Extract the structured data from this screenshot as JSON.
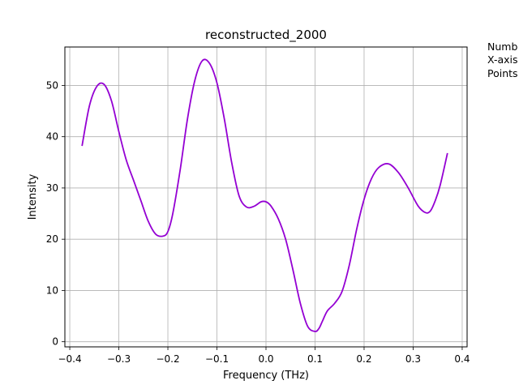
{
  "chart_data": {
    "type": "line",
    "title": "reconstructed_2000",
    "xlabel": "Frequency (THz)",
    "ylabel": "Intensity",
    "xlim": [
      -0.41,
      0.41
    ],
    "ylim": [
      -1,
      57.5
    ],
    "xticks": [
      -0.4,
      -0.3,
      -0.2,
      -0.1,
      0.0,
      0.1,
      0.2,
      0.3,
      0.4
    ],
    "xtick_labels": [
      "−0.4",
      "−0.3",
      "−0.2",
      "−0.1",
      "0.0",
      "0.1",
      "0.2",
      "0.3",
      "0.4"
    ],
    "yticks": [
      0,
      10,
      20,
      30,
      40,
      50
    ],
    "ytick_labels": [
      "0",
      "10",
      "20",
      "30",
      "40",
      "50"
    ],
    "grid": true,
    "legend": "none",
    "series": [
      {
        "color": "#9400d3",
        "x": [
          -0.375,
          -0.36,
          -0.345,
          -0.33,
          -0.315,
          -0.3,
          -0.285,
          -0.27,
          -0.255,
          -0.24,
          -0.225,
          -0.21,
          -0.2,
          -0.19,
          -0.175,
          -0.16,
          -0.145,
          -0.13,
          -0.115,
          -0.1,
          -0.085,
          -0.07,
          -0.055,
          -0.04,
          -0.025,
          -0.01,
          0.0,
          0.01,
          0.025,
          0.04,
          0.055,
          0.07,
          0.085,
          0.1,
          0.108,
          0.115,
          0.125,
          0.14,
          0.155,
          0.17,
          0.185,
          0.2,
          0.215,
          0.23,
          0.25,
          0.27,
          0.29,
          0.31,
          0.325,
          0.335,
          0.345,
          0.355,
          0.37
        ],
        "y": [
          38.2,
          46.0,
          49.8,
          50.2,
          47.0,
          41.0,
          35.5,
          31.5,
          27.5,
          23.5,
          21.0,
          20.6,
          21.5,
          25.0,
          33.5,
          43.5,
          51.0,
          54.8,
          54.3,
          50.5,
          43.5,
          35.0,
          28.5,
          26.3,
          26.4,
          27.3,
          27.3,
          26.5,
          24.0,
          20.0,
          14.0,
          7.5,
          3.0,
          2.0,
          2.6,
          4.0,
          6.0,
          7.5,
          9.8,
          15.0,
          22.0,
          27.8,
          31.8,
          34.0,
          34.7,
          33.0,
          30.0,
          26.5,
          25.2,
          25.5,
          27.5,
          30.5,
          36.8
        ]
      }
    ]
  },
  "side_text": {
    "line1": "Numb",
    "line2": "X-axis",
    "line3": "Points"
  }
}
